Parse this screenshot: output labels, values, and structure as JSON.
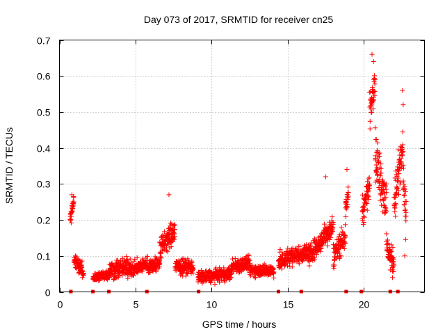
{
  "chart_data": {
    "type": "scatter",
    "title": "Day 073 of 2017, SRMTID for receiver cn25",
    "xlabel": "GPS time / hours",
    "ylabel": "SRMTID / TECUs",
    "xlim": [
      0,
      24
    ],
    "ylim": [
      0,
      0.7
    ],
    "xticks": [
      0,
      5,
      10,
      15,
      20
    ],
    "yticks": [
      0,
      0.1,
      0.2,
      0.3,
      0.4,
      0.5,
      0.6,
      0.7
    ],
    "x_tick_labels": [
      "0",
      "5",
      "10",
      "15",
      "20"
    ],
    "y_tick_labels": [
      "0",
      "0.1",
      "0.2",
      "0.3",
      "0.4",
      "0.5",
      "0.6",
      "0.7"
    ],
    "grid": true,
    "marker": "+",
    "color": "#ff0000",
    "series": [
      {
        "name": "SRMTID",
        "segments": [
          {
            "x_start": 0.7,
            "x_end": 0.95,
            "level": [
              0.2,
              0.26
            ],
            "spread": 0.03
          },
          {
            "x_start": 0.95,
            "x_end": 1.5,
            "level": [
              0.09,
              0.06
            ],
            "spread": 0.03
          },
          {
            "x_start": 1.5,
            "x_end": 1.6,
            "level": [
              0.05,
              0.05
            ],
            "spread": 0.01
          },
          {
            "x_start": 2.2,
            "x_end": 3.3,
            "level": [
              0.04,
              0.05
            ],
            "spread": 0.02
          },
          {
            "x_start": 3.3,
            "x_end": 4.7,
            "level": [
              0.06,
              0.07
            ],
            "spread": 0.04
          },
          {
            "x_start": 4.7,
            "x_end": 5.8,
            "level": [
              0.06,
              0.08
            ],
            "spread": 0.03
          },
          {
            "x_start": 5.8,
            "x_end": 6.6,
            "level": [
              0.07,
              0.08
            ],
            "spread": 0.03
          },
          {
            "x_start": 6.6,
            "x_end": 7.6,
            "level": [
              0.12,
              0.17
            ],
            "spread": 0.05
          },
          {
            "x_start": 7.6,
            "x_end": 8.8,
            "level": [
              0.07,
              0.07
            ],
            "spread": 0.03
          },
          {
            "x_start": 9.1,
            "x_end": 11.3,
            "level": [
              0.04,
              0.05
            ],
            "spread": 0.025
          },
          {
            "x_start": 11.3,
            "x_end": 12.5,
            "level": [
              0.07,
              0.08
            ],
            "spread": 0.03
          },
          {
            "x_start": 12.5,
            "x_end": 14.1,
            "level": [
              0.06,
              0.06
            ],
            "spread": 0.025
          },
          {
            "x_start": 14.4,
            "x_end": 15.2,
            "level": [
              0.08,
              0.1
            ],
            "spread": 0.04
          },
          {
            "x_start": 15.2,
            "x_end": 16.4,
            "level": [
              0.1,
              0.11
            ],
            "spread": 0.035
          },
          {
            "x_start": 16.4,
            "x_end": 17.4,
            "level": [
              0.1,
              0.15
            ],
            "spread": 0.04
          },
          {
            "x_start": 17.4,
            "x_end": 18.0,
            "level": [
              0.16,
              0.18
            ],
            "spread": 0.05
          },
          {
            "x_start": 18.0,
            "x_end": 18.8,
            "level": [
              0.1,
              0.16
            ],
            "spread": 0.05
          },
          {
            "x_start": 18.8,
            "x_end": 19.0,
            "level": [
              0.22,
              0.28
            ],
            "spread": 0.04
          },
          {
            "x_start": 19.9,
            "x_end": 20.4,
            "level": [
              0.22,
              0.3
            ],
            "spread": 0.06
          },
          {
            "x_start": 20.4,
            "x_end": 20.75,
            "level": [
              0.5,
              0.6
            ],
            "spread": 0.07
          },
          {
            "x_start": 20.75,
            "x_end": 21.5,
            "level": [
              0.38,
              0.25
            ],
            "spread": 0.1
          },
          {
            "x_start": 21.5,
            "x_end": 22.0,
            "level": [
              0.12,
              0.08
            ],
            "spread": 0.05
          },
          {
            "x_start": 22.0,
            "x_end": 22.6,
            "level": [
              0.25,
              0.4
            ],
            "spread": 0.1
          },
          {
            "x_start": 22.6,
            "x_end": 22.8,
            "level": [
              0.3,
              0.2
            ],
            "spread": 0.08
          }
        ],
        "outliers": [
          {
            "x": 20.55,
            "y": 0.66
          },
          {
            "x": 20.65,
            "y": 0.64
          },
          {
            "x": 22.55,
            "y": 0.56
          },
          {
            "x": 22.6,
            "y": 0.52
          },
          {
            "x": 0.82,
            "y": 0.27
          },
          {
            "x": 7.2,
            "y": 0.27
          },
          {
            "x": 17.5,
            "y": 0.32
          },
          {
            "x": 18.9,
            "y": 0.34
          },
          {
            "x": 21.9,
            "y": 0.04
          },
          {
            "x": 22.7,
            "y": 0.1
          }
        ]
      }
    ],
    "zero_markers_x": [
      0.75,
      2.2,
      3.25,
      5.75,
      9.15,
      14.4,
      15.9,
      18.85,
      19.85,
      21.75,
      22.25
    ]
  }
}
